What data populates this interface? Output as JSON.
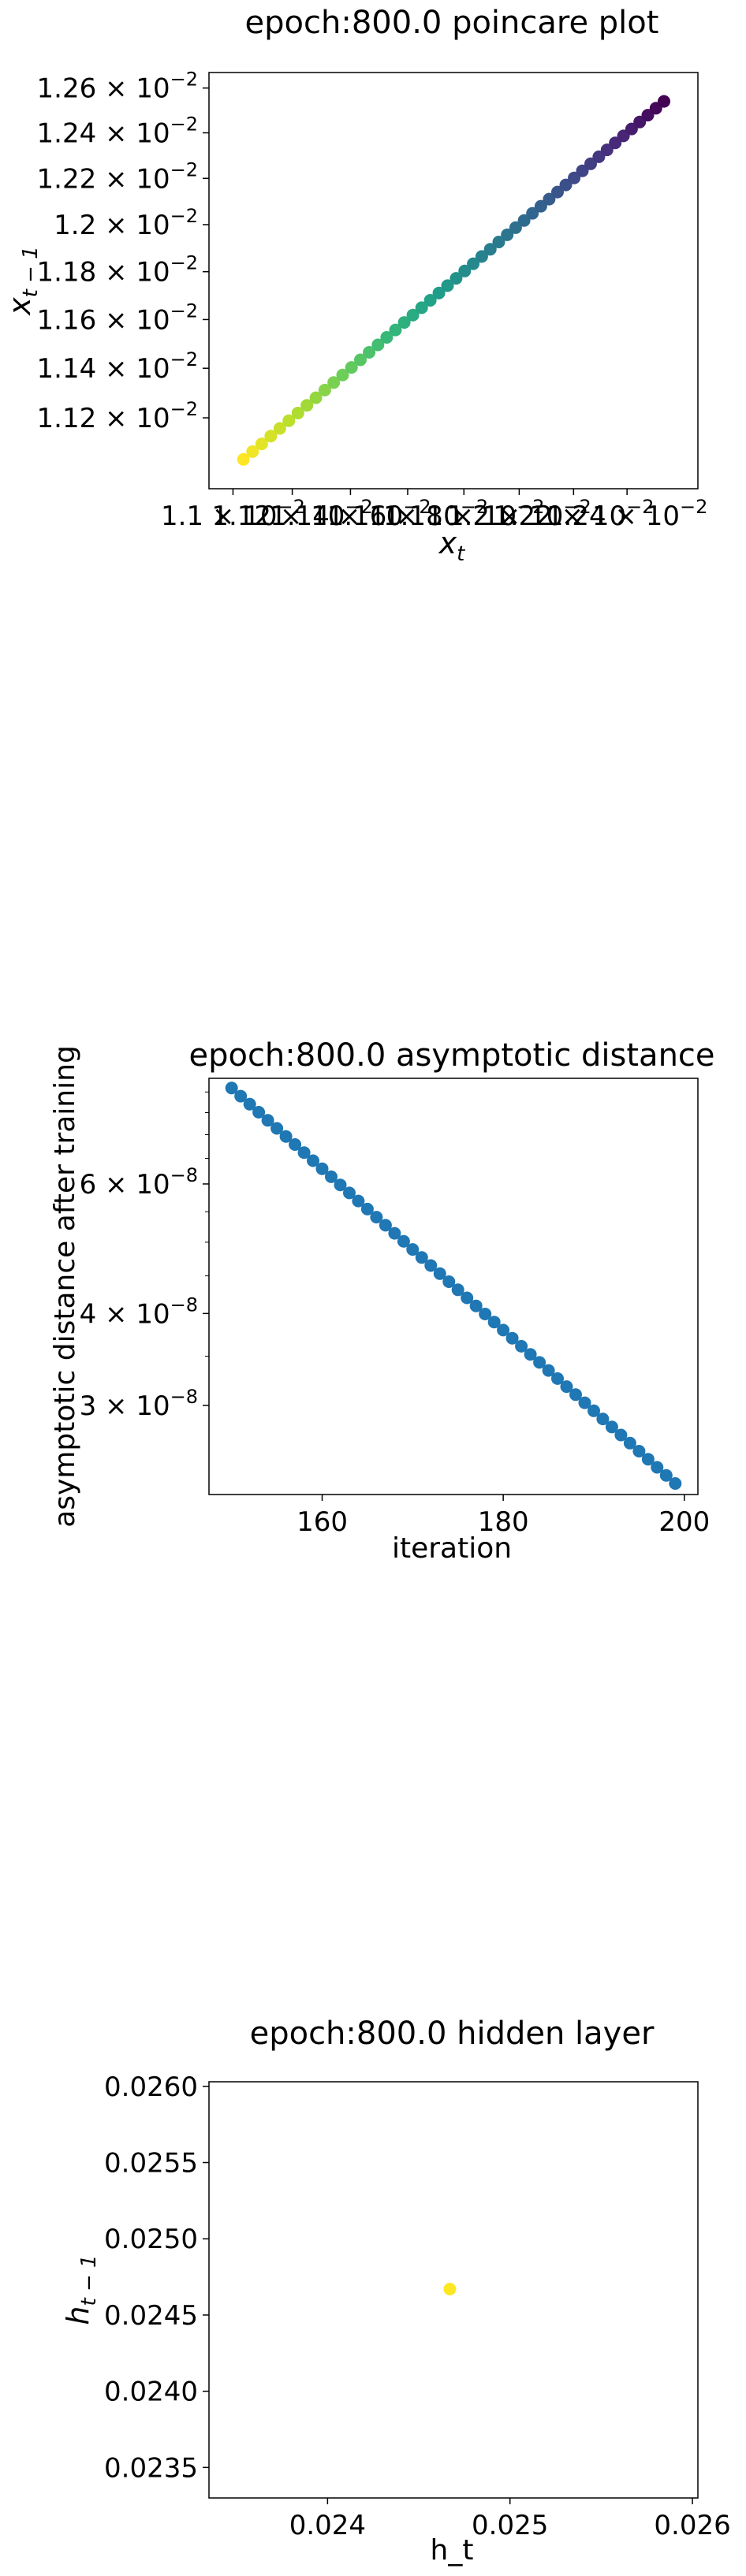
{
  "chart_data": [
    {
      "type": "scatter",
      "title": "epoch:800.0 poincare plot",
      "xlabel_base": "x",
      "xlabel_sub": "t",
      "ylabel_base": "x",
      "ylabel_sub": "t − 1",
      "xscale": "log",
      "yscale": "log",
      "xlim": [
        0.01092,
        0.01267
      ],
      "ylim": [
        0.01092,
        0.01267
      ],
      "yticks": [
        {
          "value": 0.0112,
          "mant": "1.12",
          "exp": "−2"
        },
        {
          "value": 0.0114,
          "mant": "1.14",
          "exp": "−2"
        },
        {
          "value": 0.0116,
          "mant": "1.16",
          "exp": "−2"
        },
        {
          "value": 0.0118,
          "mant": "1.18",
          "exp": "−2"
        },
        {
          "value": 0.012,
          "mant": "1.2",
          "exp": "−2"
        },
        {
          "value": 0.0122,
          "mant": "1.22",
          "exp": "−2"
        },
        {
          "value": 0.0124,
          "mant": "1.24",
          "exp": "−2"
        },
        {
          "value": 0.0126,
          "mant": "1.26",
          "exp": "−2"
        }
      ],
      "xticks": [
        {
          "value": 0.011,
          "mant": "1.1",
          "exp": "−2"
        },
        {
          "value": 0.0112,
          "mant": "1.12",
          "exp": "−2"
        },
        {
          "value": 0.0114,
          "mant": "1.14",
          "exp": "−2"
        },
        {
          "value": 0.0116,
          "mant": "1.16",
          "exp": "−2"
        },
        {
          "value": 0.0118,
          "mant": "1.18",
          "exp": "−2"
        },
        {
          "value": 0.012,
          "mant": "1.2",
          "exp": "−2"
        },
        {
          "value": 0.0122,
          "mant": "1.22",
          "exp": "−2"
        },
        {
          "value": 0.0124,
          "mant": "1.24",
          "exp": "−2"
        }
      ],
      "colormap": "viridis_r",
      "series_x_from": 0.011035,
      "series_x_to": 0.01254,
      "point_count": 50,
      "grid": false
    },
    {
      "type": "scatter",
      "title": "epoch:800.0 asymptotic distance",
      "xlabel": "iteration",
      "ylabel": "asymptotic distance after training",
      "yscale": "log",
      "xlim": [
        147.5,
        201.5
      ],
      "ylim": [
        2.27e-08,
        8.35e-08
      ],
      "xticks": [
        {
          "value": 160,
          "label": "160"
        },
        {
          "value": 180,
          "label": "180"
        },
        {
          "value": 200,
          "label": "200"
        }
      ],
      "yticks": [
        {
          "value": 3e-08,
          "mant": "3",
          "exp": "−8"
        },
        {
          "value": 4e-08,
          "mant": "4",
          "exp": "−8"
        },
        {
          "value": 6e-08,
          "mant": "6",
          "exp": "−8"
        }
      ],
      "series": [
        {
          "x_from": 150,
          "x_to": 199,
          "y_start": 8.1e-08,
          "y_end": 2.35e-08,
          "color": "#1f77b4"
        }
      ],
      "grid": false
    },
    {
      "type": "scatter",
      "title": "epoch:800.0 hidden layer",
      "xlabel": "h_t",
      "ylabel_base": "h",
      "ylabel_sub": "t − 1",
      "xlim": [
        0.02335,
        0.02603
      ],
      "ylim": [
        0.0233,
        0.02603
      ],
      "xticks": [
        {
          "value": 0.024,
          "label": "0.024"
        },
        {
          "value": 0.025,
          "label": "0.025"
        },
        {
          "value": 0.026,
          "label": "0.026"
        }
      ],
      "yticks": [
        {
          "value": 0.0235,
          "label": "0.0235"
        },
        {
          "value": 0.024,
          "label": "0.0240"
        },
        {
          "value": 0.0245,
          "label": "0.0245"
        },
        {
          "value": 0.025,
          "label": "0.0250"
        },
        {
          "value": 0.0255,
          "label": "0.0255"
        },
        {
          "value": 0.026,
          "label": "0.0260"
        }
      ],
      "points": [
        {
          "x": 0.02467,
          "y": 0.02467,
          "color": "#fde725"
        }
      ],
      "grid": false
    }
  ]
}
